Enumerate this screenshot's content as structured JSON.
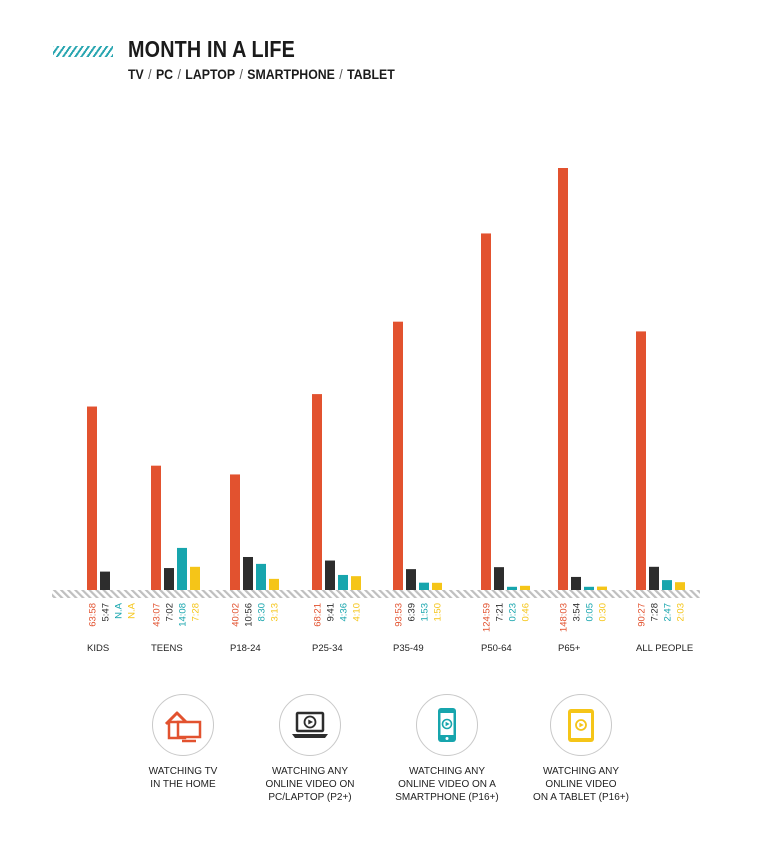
{
  "header": {
    "title": "MONTH IN A LIFE",
    "subtitle_items": [
      "TV",
      "PC",
      "LAPTOP",
      "SMARTPHONE",
      "TABLET"
    ],
    "subtitle_separator": "/"
  },
  "chart_data": {
    "type": "bar",
    "title": "MONTH IN A LIFE",
    "categories": [
      "KIDS",
      "TEENS",
      "P18-24",
      "P25-34",
      "P35-49",
      "P50-64",
      "P65+",
      "ALL PEOPLE"
    ],
    "series": [
      {
        "name": "WATCHING TV IN THE HOME",
        "color": "#e2522f",
        "labels": [
          "63:58",
          "43:07",
          "40:02",
          "68:21",
          "93:53",
          "124:59",
          "148:03",
          "90:27"
        ],
        "values": [
          63.97,
          43.12,
          40.03,
          68.35,
          93.88,
          124.98,
          148.05,
          90.45
        ]
      },
      {
        "name": "WATCHING ANY ONLINE VIDEO ON PC/LAPTOP (P2+)",
        "color": "#2d2d2d",
        "labels": [
          "5:47",
          "7:02",
          "10:56",
          "9:41",
          "6:39",
          "7:21",
          "3:54",
          "7:28"
        ],
        "values": [
          5.78,
          7.03,
          10.93,
          9.68,
          6.65,
          7.35,
          3.9,
          7.47
        ]
      },
      {
        "name": "WATCHING ANY ONLINE VIDEO ON A SMARTPHONE (P16+)",
        "color": "#17a5ad",
        "labels": [
          "N.A",
          "14:08",
          "8:30",
          "4:36",
          "1:53",
          "0:23",
          "0:05",
          "2:47"
        ],
        "values": [
          null,
          14.13,
          8.5,
          4.6,
          1.88,
          0.38,
          0.08,
          2.78
        ]
      },
      {
        "name": "WATCHING ANY ONLINE VIDEO ON A TABLET (P16+)",
        "color": "#f5c518",
        "labels": [
          "N.A",
          "7:28",
          "3:13",
          "4:10",
          "1:50",
          "0:46",
          "0:30",
          "2:03"
        ],
        "values": [
          null,
          7.47,
          3.22,
          4.17,
          1.83,
          0.77,
          0.5,
          2.05
        ]
      }
    ],
    "ylim": [
      0,
      150
    ],
    "grid": false,
    "legend_position": "bottom"
  },
  "legend": [
    {
      "label": "WATCHING TV\nIN THE HOME",
      "icon": "tv-home-icon",
      "color": "#e2522f"
    },
    {
      "label": "WATCHING ANY\nONLINE VIDEO ON\nPC/LAPTOP (P2+)",
      "icon": "laptop-play-icon",
      "color": "#2d2d2d"
    },
    {
      "label": "WATCHING ANY\nONLINE VIDEO ON A\nSMARTPHONE (P16+)",
      "icon": "smartphone-play-icon",
      "color": "#17a5ad"
    },
    {
      "label": "WATCHING ANY\nONLINE VIDEO\nON A TABLET (P16+)",
      "icon": "tablet-play-icon",
      "color": "#f5c518"
    }
  ]
}
